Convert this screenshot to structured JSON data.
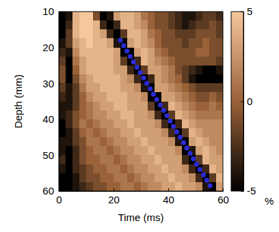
{
  "chart_data": {
    "type": "heatmap",
    "xlabel": "Time (ms)",
    "ylabel": "Depth (mm)",
    "xlim": [
      0,
      60
    ],
    "xticks": [
      0,
      20,
      40,
      60
    ],
    "ylim": [
      10,
      60
    ],
    "yticks": [
      10,
      20,
      30,
      40,
      50,
      60
    ],
    "x_bins": [
      0,
      2.5,
      5,
      7.5,
      10,
      12.5,
      15,
      17.5,
      20,
      22.5,
      25,
      27.5,
      30,
      32.5,
      35,
      37.5,
      40,
      42.5,
      45,
      47.5,
      50,
      52.5,
      55,
      57.5,
      60
    ],
    "y_bins": [
      10,
      12.5,
      15,
      17.5,
      20,
      22.5,
      25,
      27.5,
      30,
      32.5,
      35,
      37.5,
      40,
      42.5,
      45,
      47.5,
      50,
      52.5,
      55,
      57.5,
      60
    ],
    "values": [
      [
        -5,
        -4,
        4,
        5,
        5,
        -1,
        -5,
        -4,
        3,
        4,
        4,
        3,
        1,
        0,
        -1,
        -1,
        -2,
        -3,
        -4,
        -4,
        -3,
        -2,
        -2,
        -3
      ],
      [
        -5,
        -3,
        4,
        5,
        5,
        4,
        -3,
        -5,
        -3,
        4,
        4,
        3,
        2,
        0,
        -1,
        -1,
        -2,
        -3,
        -4,
        -3,
        -2,
        -2,
        -1,
        -2
      ],
      [
        -5,
        -2,
        4,
        5,
        5,
        4,
        3,
        -3,
        -5,
        -2,
        4,
        4,
        3,
        1,
        0,
        -1,
        -1,
        -2,
        -2,
        -2,
        -1,
        -1,
        -1,
        -2
      ],
      [
        -4,
        -2,
        3,
        4,
        5,
        4,
        4,
        3,
        -4,
        -5,
        3,
        4,
        3,
        2,
        0,
        -1,
        -1,
        -1,
        -2,
        -1,
        -1,
        0,
        -1,
        -1
      ],
      [
        -3,
        -4,
        2,
        4,
        4,
        4,
        4,
        4,
        3,
        -5,
        -5,
        3,
        4,
        3,
        1,
        0,
        -1,
        -1,
        -1,
        -1,
        0,
        0,
        -1,
        -1
      ],
      [
        -2,
        -5,
        1,
        3,
        4,
        4,
        4,
        4,
        3,
        -2,
        -5,
        -3,
        4,
        3,
        2,
        1,
        0,
        -1,
        -1,
        -1,
        -1,
        -1,
        -1,
        -2
      ],
      [
        -1,
        -5,
        0,
        3,
        4,
        4,
        4,
        4,
        3,
        3,
        -3,
        -5,
        -2,
        3,
        3,
        2,
        1,
        -1,
        -2,
        -3,
        -4,
        -5,
        -5,
        -4
      ],
      [
        -1,
        -5,
        -1,
        2,
        3,
        4,
        4,
        4,
        4,
        3,
        2,
        -3,
        -5,
        -3,
        3,
        2,
        1,
        0,
        -2,
        -4,
        -5,
        -5,
        -5,
        -5
      ],
      [
        -2,
        -4,
        -2,
        1,
        3,
        3,
        4,
        4,
        4,
        3,
        3,
        2,
        -4,
        -5,
        3,
        3,
        2,
        1,
        0,
        -1,
        -2,
        -2,
        -2,
        -2
      ],
      [
        -3,
        -4,
        -2,
        0,
        2,
        3,
        3,
        4,
        4,
        4,
        3,
        3,
        2,
        -5,
        -5,
        3,
        3,
        2,
        1,
        0,
        -1,
        -1,
        0,
        -1
      ],
      [
        -4,
        -4,
        -2,
        0,
        1,
        2,
        3,
        3,
        4,
        4,
        3,
        3,
        3,
        -2,
        -5,
        -3,
        4,
        3,
        2,
        1,
        0,
        0,
        1,
        0
      ],
      [
        -4,
        -3,
        -1,
        0,
        1,
        2,
        2,
        3,
        3,
        4,
        4,
        3,
        3,
        2,
        -3,
        -5,
        -2,
        4,
        3,
        2,
        1,
        1,
        1,
        1
      ],
      [
        -5,
        -3,
        -1,
        1,
        0,
        1,
        2,
        2,
        3,
        3,
        4,
        3,
        3,
        3,
        2,
        -3,
        -5,
        -3,
        4,
        3,
        2,
        2,
        2,
        2
      ],
      [
        -5,
        -4,
        -2,
        0,
        1,
        0,
        1,
        2,
        2,
        3,
        3,
        4,
        3,
        3,
        3,
        2,
        -3,
        -5,
        -2,
        4,
        3,
        2,
        2,
        2
      ],
      [
        -4,
        -4,
        -2,
        -1,
        1,
        1,
        0,
        1,
        2,
        2,
        3,
        3,
        4,
        3,
        3,
        3,
        2,
        -4,
        -5,
        3,
        4,
        3,
        2,
        2
      ],
      [
        -4,
        -5,
        -3,
        -1,
        0,
        1,
        1,
        0,
        1,
        2,
        2,
        3,
        3,
        4,
        3,
        3,
        3,
        2,
        -5,
        -4,
        3,
        4,
        3,
        2
      ],
      [
        -3,
        -5,
        -3,
        -1,
        0,
        0,
        1,
        1,
        0,
        1,
        2,
        2,
        3,
        3,
        4,
        3,
        3,
        3,
        -3,
        -5,
        -2,
        4,
        3,
        3
      ],
      [
        -4,
        -5,
        -3,
        -2,
        -1,
        0,
        0,
        1,
        1,
        0,
        1,
        2,
        2,
        3,
        3,
        4,
        3,
        3,
        2,
        -3,
        -5,
        -3,
        4,
        3
      ],
      [
        -5,
        -5,
        -4,
        -2,
        -1,
        -1,
        0,
        0,
        1,
        1,
        0,
        1,
        2,
        2,
        3,
        3,
        4,
        3,
        3,
        2,
        -3,
        -5,
        -2,
        4
      ],
      [
        -5,
        -5,
        -4,
        -3,
        -2,
        -1,
        -1,
        0,
        0,
        1,
        1,
        0,
        1,
        2,
        2,
        3,
        3,
        4,
        3,
        3,
        2,
        -4,
        -5,
        3
      ]
    ],
    "colorbar": {
      "range": [
        -5,
        5
      ],
      "ticks": [
        -5,
        0,
        5
      ],
      "label": "%"
    },
    "series": [
      {
        "type": "scatter",
        "color": "#2b2bd6",
        "marker": "circle",
        "x": [
          22.5,
          23.7,
          24.9,
          26.1,
          27.3,
          28.6,
          29.8,
          31.0,
          32.2,
          33.4,
          34.6,
          35.8,
          37.1,
          38.3,
          39.5,
          40.7,
          41.9,
          43.1,
          44.4,
          45.6,
          46.8,
          48.0,
          49.2,
          50.4,
          51.6,
          52.9,
          54.1,
          55.3
        ],
        "values": [
          18,
          19.5,
          21,
          22.5,
          24,
          25.5,
          27,
          28.5,
          30,
          31.5,
          33,
          34.5,
          36,
          37.5,
          39,
          40.5,
          42,
          43.5,
          45,
          46.5,
          48,
          49.5,
          51,
          52.5,
          54,
          55.5,
          57,
          58.5
        ]
      }
    ]
  }
}
